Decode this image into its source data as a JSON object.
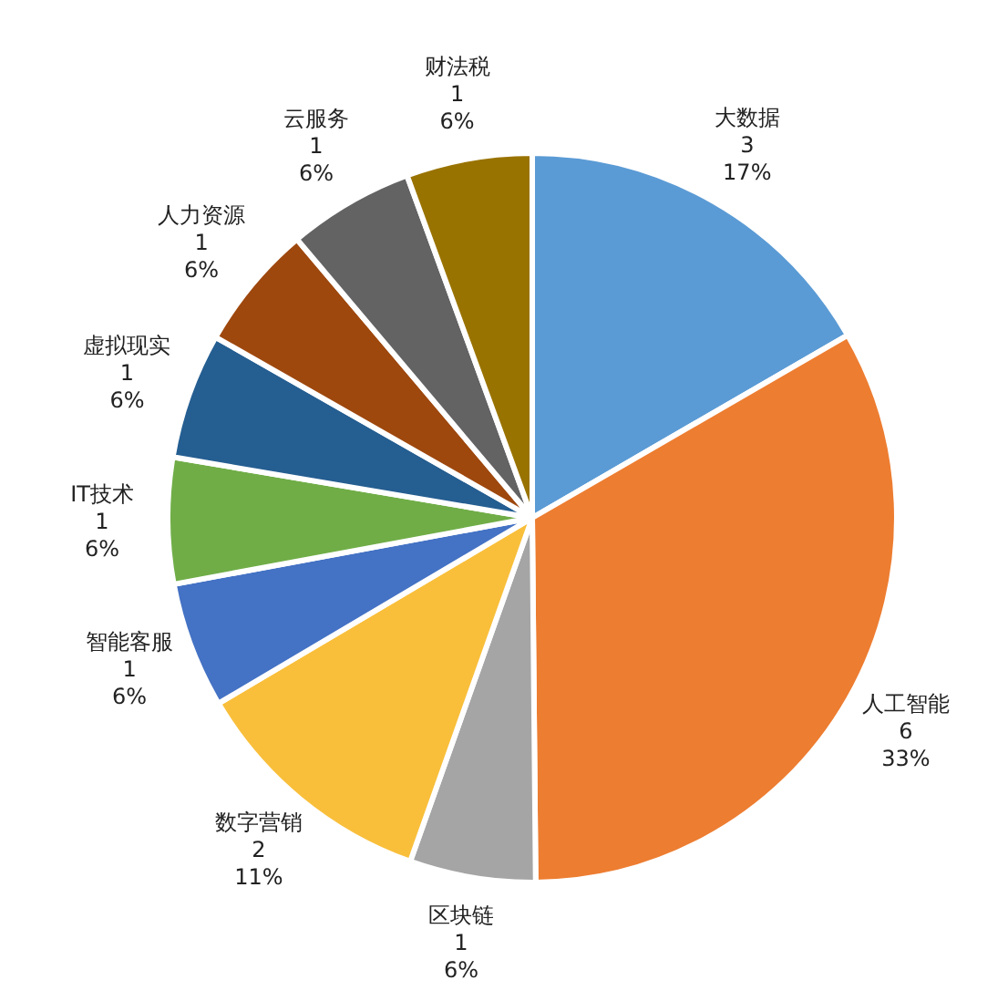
{
  "chart_data": {
    "type": "pie",
    "categories": [
      "大数据",
      "人工智能",
      "区块链",
      "数字营销",
      "智能客服",
      "IT技术",
      "虚拟现实",
      "人力资源",
      "云服务",
      "财法税"
    ],
    "values": [
      16.7,
      33.3,
      5.6,
      11.1,
      5.6,
      5.6,
      5.6,
      5.6,
      5.6,
      5.6
    ],
    "colors": [
      "#5b9bd5",
      "#ed7d31",
      "#a5a5a5",
      "#f9bf3b",
      "#4472c4",
      "#70ad47",
      "#255e91",
      "#9e480e",
      "#636363",
      "#997300"
    ],
    "value_labels": [
      "3\n17%",
      "6\n33%",
      "1\n6%",
      "2\n11%",
      "1\n6%",
      "1\n6%",
      "1\n6%",
      "1\n6%",
      "1\n6%",
      "1\n6%"
    ],
    "legend": false
  }
}
